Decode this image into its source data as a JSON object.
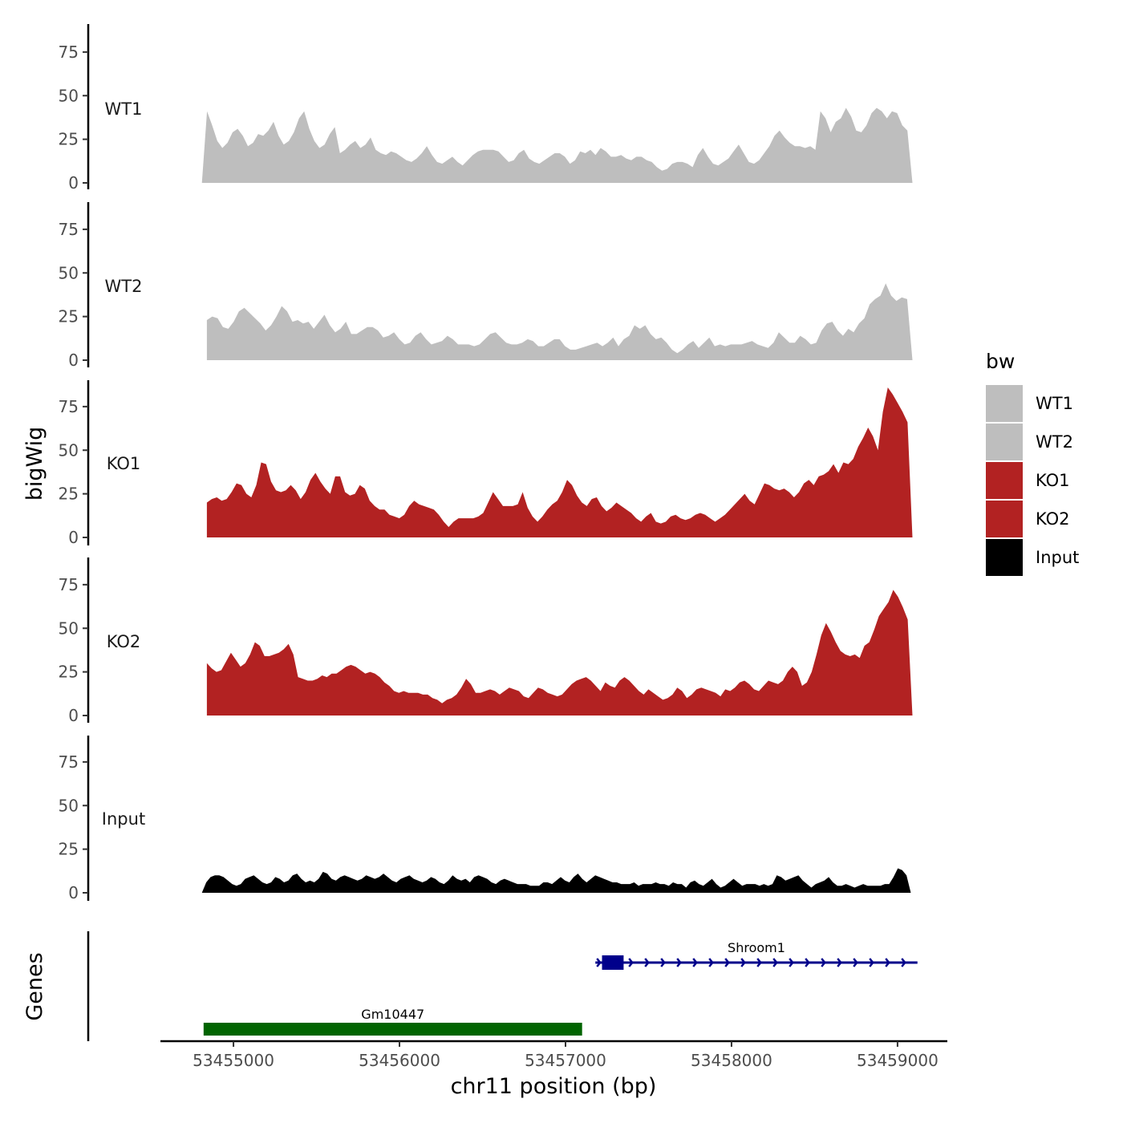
{
  "chart_data": {
    "type": "area",
    "x_axis": {
      "label": "chr11 position (bp)",
      "ticks": [
        53455000,
        53456000,
        53457000,
        53458000,
        53459000
      ],
      "tick_labels": [
        "53455000",
        "53456000",
        "53457000",
        "53458000",
        "53459000"
      ],
      "range": [
        53454560,
        53459300
      ]
    },
    "y_axis": {
      "label": "bigWig",
      "ticks": [
        0,
        25,
        50,
        75
      ],
      "tick_labels": [
        "0",
        "25",
        "50",
        "75"
      ],
      "range": [
        0,
        90
      ]
    },
    "genes_axis_label": "Genes",
    "legend": {
      "title": "bw",
      "position": "right",
      "entries": [
        {
          "name": "WT1",
          "color": "#bebebe"
        },
        {
          "name": "WT2",
          "color": "#bebebe"
        },
        {
          "name": "KO1",
          "color": "#b22222"
        },
        {
          "name": "KO2",
          "color": "#b22222"
        },
        {
          "name": "Input",
          "color": "#000000"
        }
      ]
    },
    "grid": false,
    "series": [
      {
        "name": "WT1",
        "color": "#bebebe",
        "x_start": 53454810,
        "x_end": 53459090,
        "values": [
          0,
          41,
          33,
          24,
          20,
          23,
          29,
          31,
          27,
          21,
          23,
          28,
          27,
          30,
          35,
          27,
          22,
          24,
          29,
          37,
          41,
          31,
          24,
          20,
          22,
          28,
          32,
          17,
          19,
          22,
          24,
          20,
          22,
          26,
          19,
          17,
          16,
          18,
          17,
          15,
          13,
          12,
          14,
          17,
          21,
          16,
          12,
          11,
          13,
          15,
          12,
          10,
          13,
          16,
          18,
          19,
          19,
          19,
          18,
          15,
          12,
          13,
          17,
          19,
          14,
          12,
          11,
          13,
          15,
          17,
          17,
          15,
          11,
          13,
          18,
          17,
          19,
          16,
          20,
          18,
          15,
          15,
          16,
          14,
          13,
          15,
          15,
          13,
          12,
          9,
          7,
          8,
          11,
          12,
          12,
          11,
          9,
          16,
          20,
          15,
          11,
          10,
          12,
          14,
          18,
          22,
          17,
          12,
          11,
          13,
          17,
          21,
          27,
          30,
          26,
          23,
          21,
          21,
          20,
          21,
          19,
          41,
          37,
          29,
          35,
          37,
          43,
          38,
          30,
          29,
          33,
          40,
          43,
          41,
          37,
          41,
          40,
          33,
          30,
          0
        ]
      },
      {
        "name": "WT2",
        "color": "#bebebe",
        "x_start": 53454840,
        "x_end": 53459090,
        "values": [
          23,
          25,
          24,
          19,
          18,
          22,
          28,
          30,
          27,
          24,
          21,
          17,
          20,
          25,
          31,
          28,
          22,
          23,
          21,
          22,
          18,
          22,
          26,
          20,
          16,
          18,
          22,
          15,
          15,
          17,
          19,
          19,
          17,
          13,
          14,
          16,
          12,
          9,
          10,
          14,
          16,
          12,
          9,
          10,
          11,
          14,
          12,
          9,
          9,
          9,
          8,
          9,
          12,
          15,
          16,
          13,
          10,
          9,
          9,
          10,
          12,
          11,
          8,
          8,
          10,
          12,
          12,
          8,
          6,
          6,
          7,
          8,
          9,
          10,
          8,
          10,
          13,
          8,
          12,
          14,
          20,
          18,
          20,
          15,
          12,
          13,
          10,
          6,
          4,
          6,
          9,
          11,
          7,
          10,
          13,
          8,
          9,
          8,
          9,
          9,
          9,
          10,
          11,
          9,
          8,
          7,
          10,
          16,
          13,
          10,
          10,
          14,
          12,
          9,
          10,
          17,
          21,
          22,
          17,
          14,
          18,
          16,
          21,
          24,
          32,
          35,
          37,
          44,
          37,
          34,
          36,
          35,
          0
        ]
      },
      {
        "name": "KO1",
        "color": "#b22222",
        "x_start": 53454840,
        "x_end": 53459090,
        "values": [
          20,
          22,
          23,
          21,
          22,
          26,
          31,
          30,
          25,
          23,
          30,
          43,
          42,
          32,
          27,
          26,
          27,
          30,
          27,
          22,
          26,
          33,
          37,
          32,
          28,
          25,
          35,
          35,
          26,
          24,
          25,
          30,
          28,
          21,
          18,
          16,
          16,
          13,
          12,
          11,
          13,
          18,
          21,
          19,
          18,
          17,
          16,
          13,
          9,
          6,
          9,
          11,
          11,
          11,
          11,
          12,
          14,
          20,
          26,
          22,
          18,
          18,
          18,
          19,
          26,
          17,
          12,
          9,
          12,
          16,
          19,
          21,
          26,
          33,
          30,
          24,
          20,
          18,
          22,
          23,
          18,
          15,
          17,
          20,
          18,
          16,
          14,
          11,
          9,
          12,
          14,
          9,
          8,
          9,
          12,
          13,
          11,
          10,
          11,
          13,
          14,
          13,
          11,
          9,
          11,
          13,
          16,
          19,
          22,
          25,
          21,
          19,
          25,
          31,
          30,
          28,
          27,
          28,
          26,
          23,
          26,
          31,
          33,
          30,
          35,
          36,
          38,
          42,
          37,
          43,
          42,
          45,
          52,
          57,
          63,
          58,
          50,
          72,
          86,
          82,
          77,
          72,
          66,
          0
        ]
      },
      {
        "name": "KO2",
        "color": "#b22222",
        "x_start": 53454840,
        "x_end": 53459090,
        "values": [
          30,
          27,
          25,
          26,
          31,
          36,
          32,
          28,
          30,
          35,
          42,
          40,
          34,
          34,
          35,
          36,
          38,
          41,
          35,
          22,
          21,
          20,
          20,
          21,
          23,
          22,
          24,
          24,
          26,
          28,
          29,
          28,
          26,
          24,
          25,
          24,
          22,
          19,
          17,
          14,
          13,
          14,
          13,
          13,
          13,
          12,
          12,
          10,
          9,
          7,
          9,
          10,
          12,
          16,
          21,
          18,
          13,
          13,
          14,
          15,
          14,
          12,
          14,
          16,
          15,
          14,
          11,
          10,
          13,
          16,
          15,
          13,
          12,
          11,
          12,
          15,
          18,
          20,
          21,
          22,
          20,
          17,
          14,
          19,
          17,
          16,
          20,
          22,
          20,
          17,
          14,
          12,
          15,
          13,
          11,
          9,
          10,
          12,
          16,
          14,
          10,
          12,
          15,
          16,
          15,
          14,
          13,
          11,
          15,
          14,
          16,
          19,
          20,
          18,
          15,
          14,
          17,
          20,
          19,
          18,
          20,
          25,
          28,
          25,
          17,
          19,
          25,
          35,
          46,
          53,
          48,
          42,
          37,
          35,
          34,
          35,
          33,
          40,
          42,
          49,
          57,
          61,
          65,
          72,
          68,
          62,
          55,
          0
        ]
      },
      {
        "name": "Input",
        "color": "#000000",
        "x_start": 53454810,
        "x_end": 53459080,
        "values": [
          0,
          6,
          9,
          10,
          10,
          9,
          7,
          5,
          4,
          5,
          8,
          9,
          10,
          8,
          6,
          5,
          6,
          9,
          8,
          6,
          7,
          10,
          11,
          8,
          6,
          7,
          6,
          8,
          12,
          11,
          8,
          7,
          9,
          10,
          9,
          8,
          7,
          8,
          10,
          9,
          8,
          9,
          11,
          9,
          7,
          6,
          8,
          9,
          10,
          8,
          7,
          6,
          7,
          9,
          8,
          6,
          5,
          7,
          10,
          8,
          7,
          8,
          6,
          9,
          10,
          9,
          8,
          6,
          5,
          7,
          8,
          7,
          6,
          5,
          5,
          5,
          4,
          4,
          4,
          6,
          6,
          5,
          7,
          9,
          7,
          6,
          9,
          11,
          8,
          6,
          8,
          10,
          9,
          8,
          7,
          6,
          6,
          5,
          5,
          5,
          6,
          4,
          5,
          5,
          5,
          6,
          5,
          5,
          4,
          6,
          5,
          5,
          3,
          6,
          7,
          5,
          4,
          6,
          8,
          5,
          3,
          4,
          6,
          8,
          6,
          4,
          5,
          5,
          5,
          4,
          5,
          4,
          5,
          10,
          9,
          7,
          8,
          9,
          10,
          7,
          5,
          3,
          5,
          6,
          7,
          9,
          6,
          4,
          4,
          5,
          4,
          3,
          4,
          5,
          4,
          4,
          4,
          4,
          5,
          5,
          9,
          14,
          13,
          10,
          0
        ]
      }
    ],
    "genes": [
      {
        "name": "Gm10447",
        "start": 53454820,
        "end": 53457100,
        "color": "#006400",
        "strand": "none"
      },
      {
        "name": "Shroom1",
        "start": 53457180,
        "end": 53459120,
        "color": "#00008b",
        "strand": "+",
        "exon_start": 53457220,
        "exon_end": 53457350
      }
    ]
  }
}
